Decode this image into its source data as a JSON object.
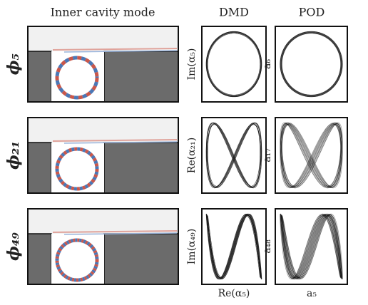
{
  "header": {
    "columns": [
      "Inner cavity mode",
      "DMD",
      "POD"
    ]
  },
  "rows": [
    {
      "label": "ϕ₅",
      "dmd_ylabel": "Im(α₅)",
      "pod_ylabel": "a₆"
    },
    {
      "label": "ϕ₂₁",
      "dmd_ylabel": "Re(α₂₁)",
      "pod_ylabel": "a₁₇"
    },
    {
      "label": "ϕ₄₉",
      "dmd_ylabel": "Im(α₄₉)",
      "pod_ylabel": "a₄₈"
    }
  ],
  "footer": {
    "dmd_xlabel": "Re(α₅)",
    "pod_xlabel": "a₅"
  }
}
